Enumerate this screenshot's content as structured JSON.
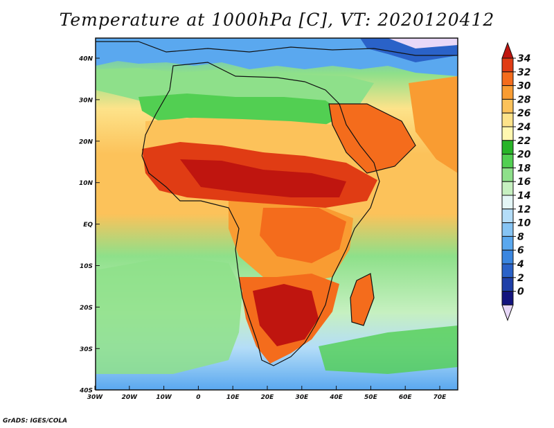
{
  "title": "Temperature at 1000hPa [C], VT: 2020120412",
  "credit": "GrADS: IGES/COLA",
  "map": {
    "lat_ticks": [
      "40N",
      "30N",
      "20N",
      "10N",
      "EQ",
      "10S",
      "20S",
      "30S",
      "40S"
    ],
    "lon_ticks": [
      "30W",
      "20W",
      "10W",
      "0",
      "10E",
      "20E",
      "30E",
      "40E",
      "50E",
      "60E",
      "70E"
    ]
  },
  "colorbar": {
    "labels": [
      "34",
      "32",
      "30",
      "28",
      "26",
      "24",
      "22",
      "20",
      "18",
      "16",
      "14",
      "12",
      "10",
      "8",
      "6",
      "4",
      "2",
      "0"
    ],
    "colors": [
      "#e8d8f8",
      "#13147e",
      "#1e3fa8",
      "#2a62c8",
      "#3a86e0",
      "#5aa8ef",
      "#86c4f4",
      "#b4ddf8",
      "#e4f6f6",
      "#c6f0c0",
      "#8ee08a",
      "#52cf52",
      "#28b428",
      "#fff7b0",
      "#fde38a",
      "#fcc25a",
      "#f99c32",
      "#f46c1c",
      "#e03c14",
      "#bf150f"
    ]
  }
}
